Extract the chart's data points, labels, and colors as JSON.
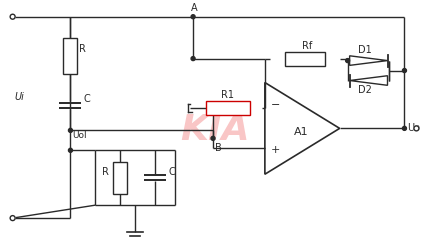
{
  "bg_color": "#ffffff",
  "line_color": "#2a2a2a",
  "resistor_color_R1": "#cc0000",
  "kia_text_color": "#f5a0a0",
  "kia_text": "KIA",
  "label_A": "A",
  "label_B": "B",
  "label_Ui": "Ui",
  "label_Uo": "Uo",
  "label_Uol": "Uol",
  "label_R": "R",
  "label_C": "C",
  "label_R1": "R1",
  "label_Rf": "Rf",
  "label_D1": "D1",
  "label_D2": "D2",
  "label_A1": "A1",
  "figsize": [
    4.46,
    2.52
  ],
  "dpi": 100
}
